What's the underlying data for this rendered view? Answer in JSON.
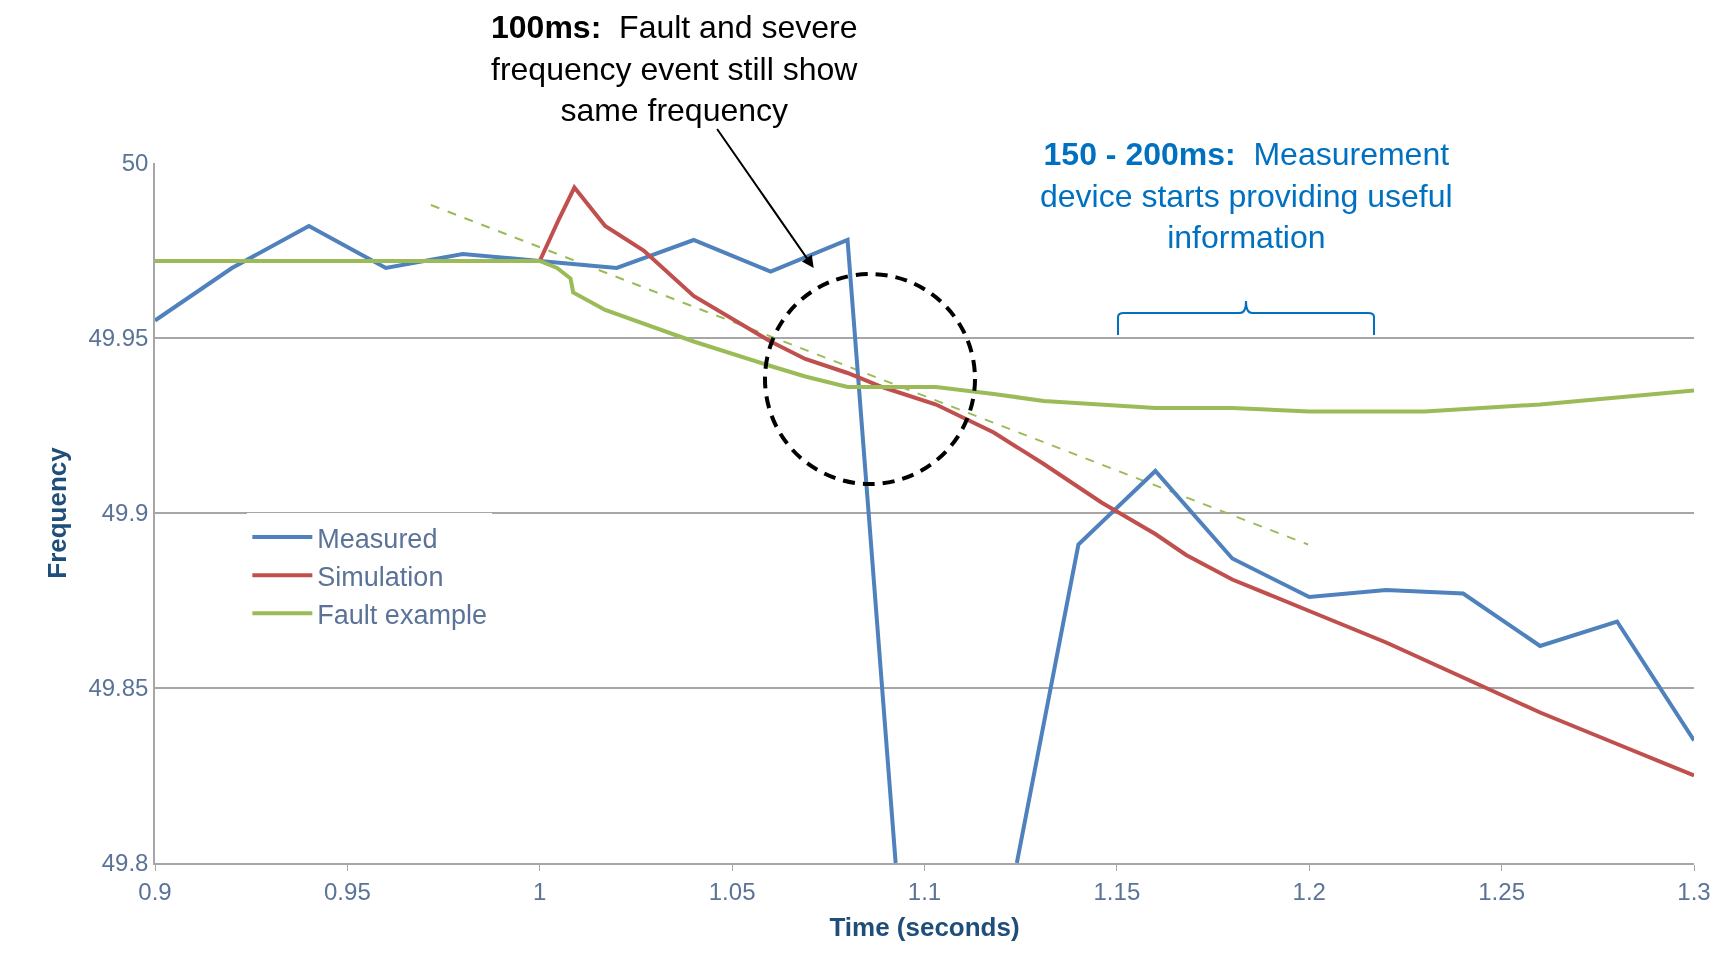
{
  "chart_data": {
    "type": "line",
    "xlabel": "Time (seconds)",
    "ylabel": "Frequency",
    "xlim": [
      0.9,
      1.3
    ],
    "xticks": [
      0.9,
      0.95,
      1,
      1.05,
      1.1,
      1.15,
      1.2,
      1.25,
      1.3
    ],
    "ylim": [
      49.8,
      50
    ],
    "yticks": [
      49.8,
      49.85,
      49.9,
      49.95,
      50
    ],
    "grid": "y",
    "legend": "left",
    "marker": "none",
    "series": [
      {
        "name": "Measured",
        "color": "#4f81bd",
        "x": [
          0.9,
          0.92,
          0.94,
          0.96,
          0.98,
          1.0,
          1.02,
          1.04,
          1.06,
          1.08,
          1.0925,
          1.11,
          1.124,
          1.14,
          1.16,
          1.18,
          1.2,
          1.22,
          1.24,
          1.26,
          1.28,
          1.3
        ],
        "values": [
          49.955,
          49.97,
          49.982,
          49.97,
          49.974,
          49.972,
          49.97,
          49.978,
          49.969,
          49.978,
          49.8,
          null,
          49.8,
          49.891,
          49.912,
          49.887,
          49.876,
          49.878,
          49.877,
          49.862,
          49.869,
          49.835
        ]
      },
      {
        "name": "Simulation",
        "color": "#c0504d",
        "x": [
          1.0,
          1.005,
          1.009,
          1.017,
          1.027,
          1.04,
          1.06,
          1.069,
          1.08,
          1.089,
          1.103,
          1.118,
          1.131,
          1.146,
          1.16,
          1.168,
          1.18,
          1.2,
          1.22,
          1.24,
          1.26,
          1.28,
          1.3
        ],
        "values": [
          49.972,
          49.984,
          49.993,
          49.982,
          49.975,
          49.962,
          49.949,
          49.944,
          49.94,
          49.936,
          49.931,
          49.923,
          49.914,
          49.903,
          49.894,
          49.888,
          49.881,
          49.872,
          49.863,
          49.853,
          49.843,
          49.834,
          49.825
        ]
      },
      {
        "name": "Fault example",
        "color": "#9bbb59",
        "x": [
          0.9,
          1.0,
          1.0045,
          1.008,
          1.0087,
          1.017,
          1.04,
          1.06,
          1.069,
          1.08,
          1.103,
          1.118,
          1.131,
          1.16,
          1.18,
          1.2,
          1.23,
          1.26,
          1.28,
          1.3
        ],
        "values": [
          49.972,
          49.972,
          49.97,
          49.967,
          49.963,
          49.958,
          49.949,
          49.942,
          49.939,
          49.936,
          49.936,
          49.934,
          49.932,
          49.93,
          49.93,
          49.929,
          49.929,
          49.931,
          49.933,
          49.935
        ]
      },
      {
        "type": "line",
        "color": "#9bbb59",
        "line_style": "dashed",
        "x": [
          0.9717,
          1.1997
        ],
        "values": [
          49.988,
          49.891
        ]
      }
    ],
    "annotations": [
      "100ms:  Fault and severe\nfrequency event still show\nsame frequency",
      "150 - 200ms:  Measurement\ndevice starts providing useful\ninformation"
    ]
  }
}
